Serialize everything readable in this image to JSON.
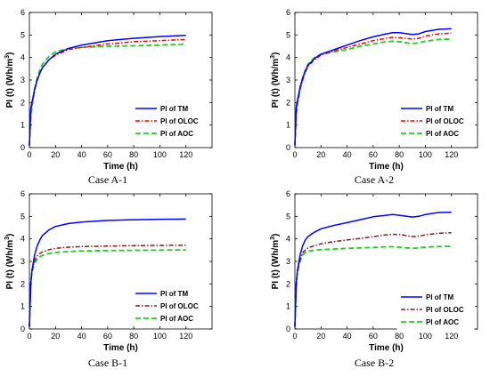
{
  "chart_data": [
    {
      "type": "line",
      "caption": "Case A-1",
      "xlabel": "Time (h)",
      "ylabel": "PI (t) (Wh/m",
      "ylabel_sup": "3",
      "ylabel_close": ")",
      "xlim": [
        0,
        140
      ],
      "ylim": [
        0,
        6
      ],
      "xticks": [
        0,
        20,
        40,
        60,
        80,
        100,
        120
      ],
      "yticks": [
        0,
        1,
        2,
        3,
        4,
        5,
        6
      ],
      "grid": false,
      "legend": "center-right",
      "series": [
        {
          "name": "PI of TM",
          "color": "#0000ff",
          "dash": "",
          "x": [
            0,
            1,
            2,
            4,
            6,
            8,
            10,
            15,
            20,
            30,
            40,
            60,
            80,
            100,
            120
          ],
          "y": [
            0.1,
            1.7,
            2.0,
            2.6,
            3.0,
            3.3,
            3.55,
            3.9,
            4.15,
            4.4,
            4.55,
            4.75,
            4.85,
            4.93,
            4.98
          ]
        },
        {
          "name": "PI of OLOC",
          "color": "#ff0000",
          "dash": "5,2,1.5,2",
          "x": [
            0,
            1,
            2,
            4,
            6,
            8,
            10,
            15,
            20,
            30,
            40,
            60,
            80,
            100,
            120
          ],
          "y": [
            0.1,
            1.6,
            1.9,
            2.55,
            3.0,
            3.3,
            3.55,
            3.9,
            4.1,
            4.35,
            4.45,
            4.6,
            4.7,
            4.75,
            4.8
          ]
        },
        {
          "name": "PI of AOC",
          "color": "#22cc22",
          "dash": "6,3",
          "x": [
            0,
            1,
            2,
            4,
            6,
            8,
            10,
            15,
            20,
            30,
            40,
            60,
            80,
            100,
            120
          ],
          "y": [
            0.1,
            1.3,
            1.8,
            2.6,
            3.1,
            3.45,
            3.7,
            4.05,
            4.25,
            4.4,
            4.45,
            4.5,
            4.52,
            4.55,
            4.6
          ]
        }
      ]
    },
    {
      "type": "line",
      "caption": "Case A-2",
      "xlabel": "Time (h)",
      "ylabel": "PI (t) (Wh/m",
      "ylabel_sup": "3",
      "ylabel_close": ")",
      "xlim": [
        0,
        140
      ],
      "ylim": [
        0,
        6
      ],
      "xticks": [
        0,
        20,
        40,
        60,
        80,
        100,
        120
      ],
      "yticks": [
        0,
        1,
        2,
        3,
        4,
        5,
        6
      ],
      "grid": false,
      "legend": "center-right",
      "series": [
        {
          "name": "PI of TM",
          "color": "#0000ff",
          "dash": "",
          "x": [
            0,
            1,
            2,
            4,
            6,
            8,
            10,
            15,
            20,
            30,
            40,
            50,
            60,
            70,
            75,
            80,
            90,
            95,
            100,
            110,
            120
          ],
          "y": [
            0.1,
            1.8,
            2.1,
            2.7,
            3.1,
            3.4,
            3.65,
            3.95,
            4.15,
            4.35,
            4.55,
            4.75,
            4.92,
            5.05,
            5.1,
            5.1,
            5.02,
            5.05,
            5.15,
            5.25,
            5.28
          ]
        },
        {
          "name": "PI of OLOC",
          "color": "#ff0000",
          "dash": "5,2,1.5,2",
          "x": [
            0,
            1,
            2,
            4,
            6,
            8,
            10,
            15,
            20,
            30,
            40,
            50,
            60,
            70,
            75,
            80,
            90,
            95,
            100,
            110,
            120
          ],
          "y": [
            0.1,
            1.7,
            2.0,
            2.6,
            3.0,
            3.35,
            3.6,
            3.9,
            4.1,
            4.3,
            4.45,
            4.6,
            4.75,
            4.85,
            4.9,
            4.88,
            4.82,
            4.85,
            4.95,
            5.05,
            5.08
          ]
        },
        {
          "name": "PI of AOC",
          "color": "#22cc22",
          "dash": "6,3",
          "x": [
            0,
            1,
            2,
            4,
            6,
            8,
            10,
            15,
            20,
            30,
            40,
            50,
            60,
            70,
            75,
            80,
            90,
            95,
            100,
            110,
            120
          ],
          "y": [
            0.1,
            1.4,
            1.9,
            2.6,
            3.1,
            3.45,
            3.7,
            4.0,
            4.15,
            4.25,
            4.35,
            4.5,
            4.6,
            4.7,
            4.72,
            4.7,
            4.62,
            4.65,
            4.72,
            4.8,
            4.82
          ]
        }
      ]
    },
    {
      "type": "line",
      "caption": "Case B-1",
      "xlabel": "Time (h)",
      "ylabel": "PI (t) (Wh/m",
      "ylabel_sup": "3",
      "ylabel_close": ")",
      "xlim": [
        0,
        140
      ],
      "ylim": [
        0,
        6
      ],
      "xticks": [
        0,
        20,
        40,
        60,
        80,
        100,
        120
      ],
      "yticks": [
        0,
        1,
        2,
        3,
        4,
        5,
        6
      ],
      "grid": false,
      "legend": "center-right",
      "series": [
        {
          "name": "PI of TM",
          "color": "#0000ff",
          "dash": "",
          "x": [
            0,
            1,
            2,
            4,
            6,
            8,
            10,
            15,
            20,
            30,
            40,
            60,
            80,
            100,
            120
          ],
          "y": [
            0.1,
            2.0,
            2.6,
            3.3,
            3.7,
            3.95,
            4.15,
            4.4,
            4.55,
            4.68,
            4.75,
            4.82,
            4.85,
            4.87,
            4.88
          ]
        },
        {
          "name": "PI of OLOC",
          "color": "#8b1a1a",
          "dash": "5,2,1.5,2",
          "x": [
            0,
            1,
            2,
            4,
            6,
            8,
            10,
            15,
            20,
            30,
            40,
            60,
            80,
            100,
            120
          ],
          "y": [
            0.1,
            2.0,
            2.6,
            3.05,
            3.25,
            3.35,
            3.42,
            3.52,
            3.58,
            3.63,
            3.66,
            3.68,
            3.7,
            3.71,
            3.72
          ]
        },
        {
          "name": "PI of AOC",
          "color": "#22cc22",
          "dash": "6,3",
          "x": [
            0,
            1,
            2,
            4,
            6,
            8,
            10,
            15,
            20,
            30,
            40,
            60,
            80,
            100,
            120
          ],
          "y": [
            0.1,
            2.0,
            2.55,
            2.95,
            3.1,
            3.2,
            3.27,
            3.35,
            3.4,
            3.44,
            3.46,
            3.48,
            3.49,
            3.5,
            3.51
          ]
        }
      ]
    },
    {
      "type": "line",
      "caption": "Case B-2",
      "xlabel": "Time (h)",
      "ylabel": "PI (t) (Wh/m",
      "ylabel_sup": "3",
      "ylabel_close": ")",
      "xlim": [
        0,
        140
      ],
      "ylim": [
        0,
        6
      ],
      "xticks": [
        0,
        20,
        40,
        60,
        80,
        100,
        120
      ],
      "yticks": [
        0,
        1,
        2,
        3,
        4,
        5,
        6
      ],
      "grid": false,
      "legend": "bottom-right",
      "series": [
        {
          "name": "PI of TM",
          "color": "#0000ff",
          "dash": "",
          "x": [
            0,
            1,
            2,
            4,
            6,
            8,
            10,
            15,
            20,
            30,
            40,
            50,
            60,
            70,
            75,
            80,
            90,
            95,
            100,
            110,
            120
          ],
          "y": [
            0.1,
            2.0,
            2.6,
            3.3,
            3.7,
            3.95,
            4.1,
            4.3,
            4.45,
            4.6,
            4.72,
            4.85,
            4.98,
            5.05,
            5.08,
            5.05,
            4.97,
            5.0,
            5.08,
            5.17,
            5.18
          ]
        },
        {
          "name": "PI of OLOC",
          "color": "#8b1a1a",
          "dash": "5,2,1.5,2",
          "x": [
            0,
            1,
            2,
            4,
            6,
            8,
            10,
            15,
            20,
            30,
            40,
            50,
            60,
            70,
            75,
            80,
            90,
            95,
            100,
            110,
            120
          ],
          "y": [
            0.1,
            2.0,
            2.6,
            3.1,
            3.4,
            3.5,
            3.6,
            3.7,
            3.78,
            3.88,
            3.95,
            4.02,
            4.1,
            4.18,
            4.2,
            4.2,
            4.1,
            4.12,
            4.18,
            4.25,
            4.27
          ]
        },
        {
          "name": "PI of AOC",
          "color": "#22cc22",
          "dash": "6,3",
          "x": [
            0,
            1,
            2,
            4,
            6,
            8,
            10,
            15,
            20,
            30,
            40,
            50,
            60,
            70,
            75,
            80,
            90,
            95,
            100,
            110,
            120
          ],
          "y": [
            0.1,
            2.0,
            2.55,
            3.0,
            3.3,
            3.4,
            3.45,
            3.5,
            3.52,
            3.55,
            3.58,
            3.6,
            3.62,
            3.65,
            3.65,
            3.63,
            3.58,
            3.6,
            3.63,
            3.66,
            3.67
          ]
        }
      ]
    }
  ]
}
